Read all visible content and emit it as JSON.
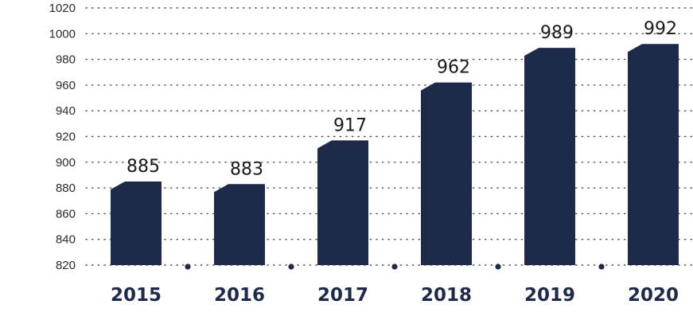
{
  "chart_data": {
    "type": "bar",
    "title": "",
    "xlabel": "",
    "ylabel": "",
    "categories": [
      "2015",
      "2016",
      "2017",
      "2018",
      "2019",
      "2020"
    ],
    "values": [
      885,
      883,
      917,
      962,
      989,
      992
    ],
    "value_labels": [
      "885",
      "883",
      "917",
      "962",
      "989",
      "992"
    ],
    "ylim": [
      820,
      1020
    ],
    "yticks": [
      820,
      840,
      860,
      880,
      900,
      920,
      940,
      960,
      980,
      1000,
      1020
    ],
    "ytick_labels": [
      "820",
      "840",
      "860",
      "880",
      "900",
      "920",
      "940",
      "960",
      "980",
      "1000",
      "1020"
    ],
    "grid": "dotted horizontal",
    "legend": "none",
    "colors": {
      "bar": "#1e2a4a",
      "grid": "#555555",
      "text": "#1a1a1a",
      "category_text": "#1e2a4a"
    }
  }
}
